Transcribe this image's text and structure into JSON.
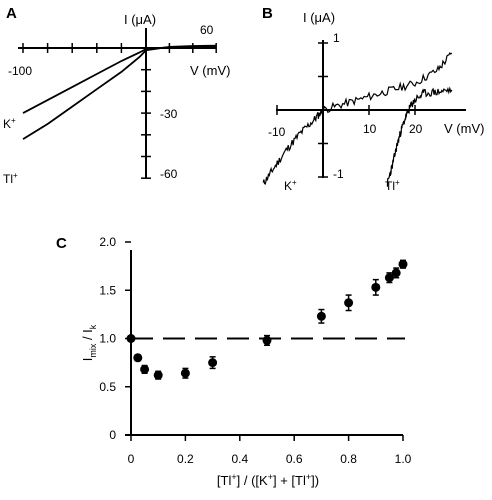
{
  "chart_data": [
    {
      "panel": "A",
      "type": "line",
      "ylabel": "I (μA)",
      "xlabel": "V (mV)",
      "x_ticks": [
        -100,
        60
      ],
      "y_ticks": [
        -30,
        -60
      ],
      "xlim": [
        -100,
        60
      ],
      "ylim": [
        -60,
        0
      ],
      "series": [
        {
          "name": "K+",
          "x": [
            -100,
            -80,
            -60,
            -40,
            -20,
            -5,
            0,
            20,
            40,
            60
          ],
          "y": [
            -30,
            -24,
            -18,
            -12,
            -6,
            -2,
            -0.5,
            0.3,
            0.6,
            0.8
          ]
        },
        {
          "name": "Tl+",
          "x": [
            -100,
            -80,
            -60,
            -40,
            -20,
            -5,
            0,
            20,
            40,
            60
          ],
          "y": [
            -42,
            -35,
            -27,
            -19,
            -11,
            -4,
            -1,
            0.5,
            0.9,
            1.1
          ]
        }
      ],
      "legend_labels": {
        "K+": "K",
        "Tl+": "Tl",
        "sup": "+"
      }
    },
    {
      "panel": "B",
      "type": "line",
      "ylabel": "I (μA)",
      "xlabel": "V (mV)",
      "x_ticks": [
        -10,
        10,
        20
      ],
      "y_ticks": [
        1,
        -1
      ],
      "xlim": [
        -15,
        30
      ],
      "ylim": [
        -1.2,
        1.2
      ],
      "series": [
        {
          "name": "K+",
          "x": [
            -13,
            -11,
            -8,
            -5,
            -2,
            0,
            5,
            10,
            15,
            20,
            25,
            28
          ],
          "y": [
            -1.1,
            -0.9,
            -0.6,
            -0.35,
            -0.15,
            0.0,
            0.1,
            0.2,
            0.3,
            0.4,
            0.6,
            0.85
          ]
        },
        {
          "name": "Tl+",
          "x": [
            14,
            15,
            16,
            17,
            18,
            19,
            20,
            22,
            25,
            28
          ],
          "y": [
            -1.1,
            -0.85,
            -0.55,
            -0.3,
            -0.1,
            0.05,
            0.15,
            0.25,
            0.27,
            0.3
          ]
        }
      ],
      "legend_labels": {
        "K+": "K",
        "Tl+": "Tl",
        "sup": "+"
      }
    },
    {
      "panel": "C",
      "type": "scatter",
      "ylabel_parts": {
        "main": "I",
        "sub1": "mix",
        "slash": " / I",
        "sub2": "k"
      },
      "xlabel_parts": {
        "a": "[Tl",
        "sup1": "+",
        "b": "] / ([K",
        "sup2": "+",
        "c": "] + [Tl",
        "sup3": "+",
        "d": "])"
      },
      "x_ticks": [
        "0",
        "0.2",
        "0.4",
        "0.6",
        "0.8",
        "1.0"
      ],
      "y_ticks": [
        "0",
        "0.5",
        "1.0",
        "1.5",
        "2.0"
      ],
      "xlim": [
        0,
        1.0
      ],
      "ylim": [
        0,
        2.0
      ],
      "reference_line": {
        "y": 1.0,
        "style": "dashed"
      },
      "points": [
        {
          "x": 0.0,
          "y": 1.0,
          "err": 0.0
        },
        {
          "x": 0.025,
          "y": 0.8,
          "err": 0.03
        },
        {
          "x": 0.05,
          "y": 0.68,
          "err": 0.04
        },
        {
          "x": 0.1,
          "y": 0.62,
          "err": 0.04
        },
        {
          "x": 0.2,
          "y": 0.64,
          "err": 0.05
        },
        {
          "x": 0.3,
          "y": 0.75,
          "err": 0.06
        },
        {
          "x": 0.5,
          "y": 0.98,
          "err": 0.05
        },
        {
          "x": 0.7,
          "y": 1.23,
          "err": 0.07
        },
        {
          "x": 0.8,
          "y": 1.37,
          "err": 0.08
        },
        {
          "x": 0.9,
          "y": 1.53,
          "err": 0.08
        },
        {
          "x": 0.95,
          "y": 1.63,
          "err": 0.05
        },
        {
          "x": 0.975,
          "y": 1.68,
          "err": 0.05
        },
        {
          "x": 1.0,
          "y": 1.77,
          "err": 0.04
        }
      ]
    }
  ]
}
